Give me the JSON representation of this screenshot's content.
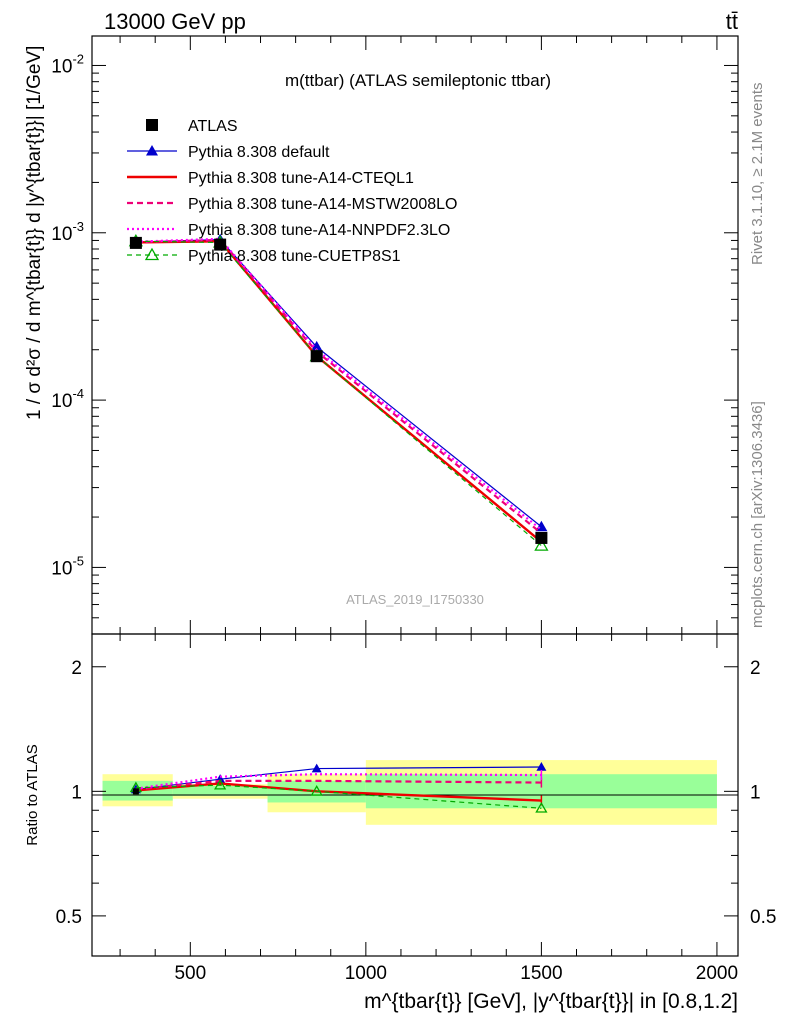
{
  "header": {
    "energy": "13000 GeV pp",
    "process": "tt̄"
  },
  "side": {
    "rivet": "Rivet 3.1.10, ≥ 2.1M events",
    "site": "mcplots.cern.ch [arXiv:1306.3436]"
  },
  "main": {
    "title": "m(ttbar) (ATLAS semileptonic ttbar)",
    "watermark": "ATLAS_2019_I1750330",
    "ylabel": "1 / σ d²σ / d m^{tbar{t}} d |y^{tbar{t}}| [1/GeV]"
  },
  "ratio": {
    "ylabel": "Ratio to ATLAS"
  },
  "x_axis": {
    "label": "m^{tbar{t}} [GeV], |y^{tbar{t}}| in [0.8,1.2]"
  },
  "legend": {
    "atlas": "ATLAS",
    "default": "Pythia 8.308 default",
    "cteql1": "Pythia 8.308 tune-A14-CTEQL1",
    "mstw": "Pythia 8.308 tune-A14-MSTW2008LO",
    "nnpdf": "Pythia 8.308 tune-A14-NNPDF2.3LO",
    "cuetp": "Pythia 8.308 tune-CUETP8S1"
  },
  "chart_data": {
    "type": "line",
    "xlim": [
      220,
      2060
    ],
    "bins": [
      [
        250,
        450
      ],
      [
        450,
        720
      ],
      [
        720,
        1000
      ],
      [
        1000,
        2000
      ]
    ],
    "x": [
      345,
      585,
      860,
      1500
    ],
    "main": {
      "yscale": "log",
      "ylim": [
        4e-06,
        0.015
      ],
      "ytick_labels": [
        "10^-5",
        "10^-4",
        "10^-3",
        "10^-2"
      ],
      "ytick_values": [
        1e-05,
        0.0001,
        0.001,
        0.01
      ]
    },
    "ratio_panel": {
      "yscale": "log",
      "ylim": [
        0.4,
        2.4
      ],
      "ytick_values": [
        0.5,
        1,
        2
      ],
      "ytick_labels": [
        "0.5",
        "1",
        "2"
      ],
      "band_inner": [
        [
          0.95,
          1.06
        ],
        [
          0.975,
          1.03
        ],
        [
          0.94,
          1.06
        ],
        [
          0.91,
          1.1
        ]
      ],
      "band_outer": [
        [
          0.92,
          1.1
        ],
        [
          0.96,
          1.04
        ],
        [
          0.89,
          1.1
        ],
        [
          0.83,
          1.19
        ]
      ]
    },
    "xticks": [
      500,
      1000,
      1500,
      2000
    ],
    "series": [
      {
        "name": "ATLAS",
        "key": "atlas",
        "color": "#000000",
        "style": "marker",
        "marker": "square",
        "values": [
          0.00087,
          0.00085,
          0.000183,
          1.5e-05
        ],
        "ratio": [
          1,
          1,
          1,
          1
        ]
      },
      {
        "name": "Pythia 8.308 default",
        "key": "default",
        "color": "#0000cc",
        "style": "solid-thin",
        "marker": "triangle",
        "values": [
          0.00088,
          0.00091,
          0.000208,
          1.75e-05
        ],
        "ratio": [
          1.01,
          1.07,
          1.135,
          1.145
        ]
      },
      {
        "name": "Pythia 8.308 tune-A14-CTEQL1",
        "key": "cteql1",
        "color": "#ee0000",
        "style": "solid-thick",
        "marker": "none",
        "values": [
          0.000875,
          0.00089,
          0.000183,
          1.42e-05
        ],
        "ratio": [
          1.005,
          1.045,
          1.0,
          0.95
        ]
      },
      {
        "name": "Pythia 8.308 tune-A14-MSTW2008LO",
        "key": "mstw",
        "color": "#ee0077",
        "style": "dashed",
        "marker": "none",
        "values": [
          0.00088,
          0.000905,
          0.000195,
          1.6e-05
        ],
        "ratio": [
          1.01,
          1.06,
          1.06,
          1.05
        ]
      },
      {
        "name": "Pythia 8.308 tune-A14-NNPDF2.3LO",
        "key": "nnpdf",
        "color": "#ff00ff",
        "style": "dotted",
        "marker": "none",
        "values": [
          0.000885,
          0.00092,
          0.0002,
          1.68e-05
        ],
        "ratio": [
          1.015,
          1.085,
          1.1,
          1.095
        ]
      },
      {
        "name": "Pythia 8.308 tune-CUETP8S1",
        "key": "cuetp",
        "color": "#00aa00",
        "style": "dashed-thin",
        "marker": "triangle-open",
        "values": [
          0.00089,
          0.000875,
          0.000183,
          1.35e-05
        ],
        "ratio": [
          1.02,
          1.035,
          1.0,
          0.91
        ]
      }
    ],
    "colors": {
      "band_inner": "#99ff99",
      "band_outer": "#ffff99"
    }
  }
}
